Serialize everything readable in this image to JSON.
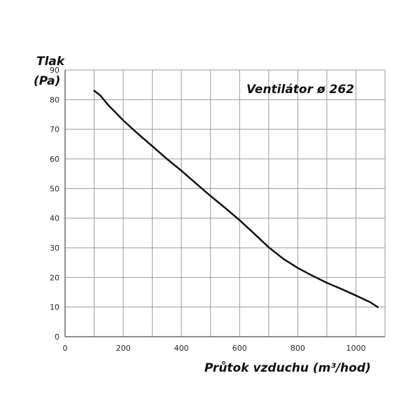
{
  "chart_data": {
    "type": "line",
    "title": "Ventilátor ø 262",
    "xlabel": "Průtok vzduchu (m³/hod)",
    "ylabel_line1": "Tlak",
    "ylabel_line2": "(Pa)",
    "xlim": [
      0,
      1100
    ],
    "ylim": [
      0,
      90
    ],
    "x_ticks": [
      0,
      200,
      400,
      600,
      800,
      1000
    ],
    "y_ticks": [
      0,
      10,
      20,
      30,
      40,
      50,
      60,
      70,
      80,
      90
    ],
    "x_grid_step": 100,
    "y_grid_step": 10,
    "grid": true,
    "line_color": "#111111",
    "series": [
      {
        "x": [
          100,
          120,
          150,
          200,
          250,
          300,
          350,
          400,
          450,
          500,
          550,
          600,
          650,
          700,
          750,
          800,
          850,
          900,
          950,
          1000,
          1050,
          1075
        ],
        "y": [
          83,
          81.5,
          78,
          73,
          68.5,
          64.3,
          60,
          56,
          51.7,
          47.5,
          43.5,
          39.3,
          34.8,
          30.2,
          26.3,
          23.2,
          20.6,
          18.2,
          16.1,
          13.9,
          11.6,
          10
        ]
      }
    ]
  }
}
